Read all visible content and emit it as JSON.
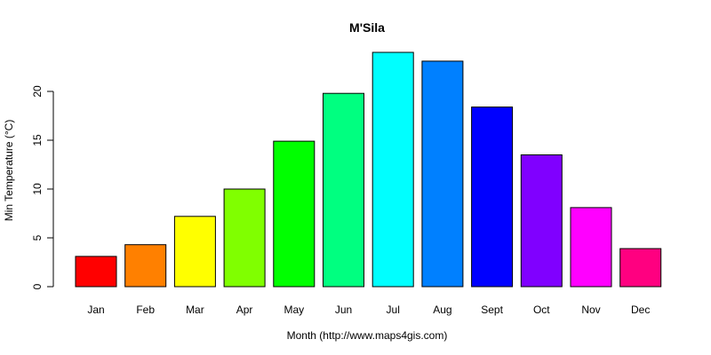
{
  "chart_data": {
    "type": "bar",
    "title": "M'Sila",
    "xlabel": "Month (http://www.maps4gis.com)",
    "ylabel": "Min Temperature (°C)",
    "categories": [
      "Jan",
      "Feb",
      "Mar",
      "Apr",
      "May",
      "Jun",
      "Jul",
      "Aug",
      "Sept",
      "Oct",
      "Nov",
      "Dec"
    ],
    "values": [
      3.1,
      4.3,
      7.2,
      10.0,
      14.9,
      19.8,
      24.0,
      23.1,
      18.4,
      13.5,
      8.1,
      3.9
    ],
    "colors": [
      "#FF0000",
      "#FF8000",
      "#FFFF00",
      "#80FF00",
      "#00FF00",
      "#00FF80",
      "#00FFFF",
      "#0080FF",
      "#0000FF",
      "#8000FF",
      "#FF00FF",
      "#FF0080"
    ],
    "yticks": [
      0,
      5,
      10,
      15,
      20
    ],
    "ylim": [
      0,
      24.5
    ],
    "grid": false,
    "legend": "none"
  }
}
